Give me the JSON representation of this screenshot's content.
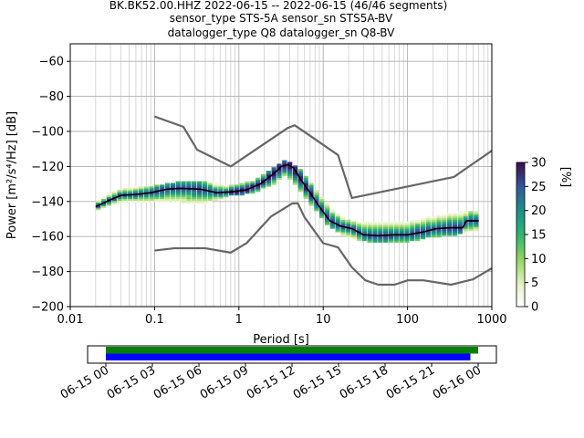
{
  "title": {
    "line1": "BK.BK52.00.HHZ   2022-06-15 -- 2022-06-15  (46/46 segments)",
    "line2": "sensor_type STS-5A sensor_sn STS5A-BV",
    "line3": "datalogger_type Q8 datalogger_sn Q8-BV"
  },
  "chart_data": {
    "type": "heatmap",
    "xlabel": "Period [s]",
    "ylabel": "Power [m²/s⁴/Hz] [dB]",
    "x_scale": "log",
    "xlim": [
      0.01,
      1000
    ],
    "ylim": [
      -200,
      -50
    ],
    "x_ticks": [
      {
        "value": 0.01,
        "label": "0.01"
      },
      {
        "value": 0.1,
        "label": "0.1"
      },
      {
        "value": 1,
        "label": "1"
      },
      {
        "value": 10,
        "label": "10"
      },
      {
        "value": 100,
        "label": "100"
      },
      {
        "value": 1000,
        "label": "1000"
      }
    ],
    "y_ticks": [
      {
        "value": -60,
        "label": "−60"
      },
      {
        "value": -80,
        "label": "−80"
      },
      {
        "value": -100,
        "label": "−100"
      },
      {
        "value": -120,
        "label": "−120"
      },
      {
        "value": -140,
        "label": "−140"
      },
      {
        "value": -160,
        "label": "−160"
      },
      {
        "value": -180,
        "label": "−180"
      },
      {
        "value": -200,
        "label": "−200"
      }
    ],
    "grid": true,
    "series": [
      {
        "role": "high-noise-model",
        "color": "#666666",
        "points": [
          [
            0.1,
            -91.5
          ],
          [
            0.22,
            -97.4
          ],
          [
            0.32,
            -110.5
          ],
          [
            0.8,
            -120
          ],
          [
            3.8,
            -98
          ],
          [
            4.6,
            -96.5
          ],
          [
            6.3,
            -101
          ],
          [
            15,
            -113.5
          ],
          [
            21.9,
            -138
          ],
          [
            354.8,
            -126
          ],
          [
            1000,
            -111
          ]
        ]
      },
      {
        "role": "low-noise-model",
        "color": "#666666",
        "points": [
          [
            0.1,
            -168
          ],
          [
            0.17,
            -166.7
          ],
          [
            0.4,
            -166.7
          ],
          [
            0.8,
            -169.2
          ],
          [
            1.24,
            -163.7
          ],
          [
            2.4,
            -148.6
          ],
          [
            4.3,
            -141.1
          ],
          [
            5,
            -141.1
          ],
          [
            6,
            -149
          ],
          [
            10,
            -163.8
          ],
          [
            15,
            -166.2
          ],
          [
            21.9,
            -177.6
          ],
          [
            31.6,
            -185
          ],
          [
            45,
            -187.5
          ],
          [
            70,
            -187.5
          ],
          [
            101,
            -185
          ],
          [
            154,
            -185
          ],
          [
            328,
            -187.5
          ],
          [
            600,
            -184.4
          ],
          [
            1000,
            -178.1
          ]
        ]
      },
      {
        "role": "mode",
        "color": "#000000",
        "points": [
          [
            0.02,
            -143
          ],
          [
            0.03,
            -139
          ],
          [
            0.04,
            -136.5
          ],
          [
            0.06,
            -136
          ],
          [
            0.09,
            -135
          ],
          [
            0.14,
            -133
          ],
          [
            0.2,
            -132.5
          ],
          [
            0.35,
            -133
          ],
          [
            0.55,
            -135
          ],
          [
            0.8,
            -134.5
          ],
          [
            1.2,
            -133.5
          ],
          [
            1.8,
            -130
          ],
          [
            2.6,
            -124
          ],
          [
            3.2,
            -120
          ],
          [
            3.8,
            -119
          ],
          [
            4.5,
            -121
          ],
          [
            5.5,
            -128
          ],
          [
            7,
            -135
          ],
          [
            9,
            -143
          ],
          [
            12,
            -151
          ],
          [
            16,
            -154
          ],
          [
            22,
            -155.5
          ],
          [
            30,
            -159
          ],
          [
            45,
            -159.5
          ],
          [
            70,
            -159
          ],
          [
            100,
            -159
          ],
          [
            150,
            -157.5
          ],
          [
            220,
            -155.5
          ],
          [
            320,
            -155
          ],
          [
            450,
            -155
          ],
          [
            500,
            -151
          ],
          [
            700,
            -151
          ]
        ]
      },
      {
        "role": "psd-density",
        "color_scale": "white-green-blue-purple",
        "upper_points": [
          [
            0.02,
            -141
          ],
          [
            0.03,
            -135
          ],
          [
            0.05,
            -132
          ],
          [
            0.1,
            -131
          ],
          [
            0.2,
            -128.5
          ],
          [
            0.4,
            -129
          ],
          [
            0.8,
            -131
          ],
          [
            1.5,
            -128
          ],
          [
            2.5,
            -121
          ],
          [
            3.5,
            -116
          ],
          [
            5,
            -120
          ],
          [
            8,
            -132
          ],
          [
            12,
            -143
          ],
          [
            20,
            -151
          ],
          [
            40,
            -152
          ],
          [
            100,
            -151
          ],
          [
            200,
            -148.5
          ],
          [
            400,
            -146
          ],
          [
            700,
            -145
          ]
        ],
        "lower_points": [
          [
            0.02,
            -146
          ],
          [
            0.03,
            -142
          ],
          [
            0.05,
            -140
          ],
          [
            0.1,
            -140.5
          ],
          [
            0.2,
            -141
          ],
          [
            0.4,
            -141.5
          ],
          [
            0.8,
            -137
          ],
          [
            1.5,
            -135
          ],
          [
            2.5,
            -131
          ],
          [
            3.5,
            -125
          ],
          [
            5,
            -132
          ],
          [
            8,
            -145
          ],
          [
            12,
            -155
          ],
          [
            20,
            -161
          ],
          [
            40,
            -163.5
          ],
          [
            100,
            -163
          ],
          [
            200,
            -160.5
          ],
          [
            400,
            -159
          ],
          [
            700,
            -157
          ]
        ]
      }
    ],
    "colorbar": {
      "label": "[%]",
      "min": 0,
      "max": 30,
      "ticks": [
        "0",
        "5",
        "10",
        "15",
        "20",
        "25",
        "30"
      ]
    },
    "coverage": {
      "xlim": [
        "06-15 00",
        "06-16 00"
      ],
      "tick_labels": [
        "06-15 00",
        "06-15 03",
        "06-15 06",
        "06-15 09",
        "06-15 12",
        "06-15 15",
        "06-15 18",
        "06-15 21",
        "06-16 00"
      ],
      "bars": [
        {
          "name": "data",
          "color": "#008000",
          "start_hours": 0.0,
          "end_hours": 24.0
        },
        {
          "name": "processed",
          "color": "#0000ff",
          "start_hours": 0.0,
          "end_hours": 23.5
        }
      ]
    }
  }
}
